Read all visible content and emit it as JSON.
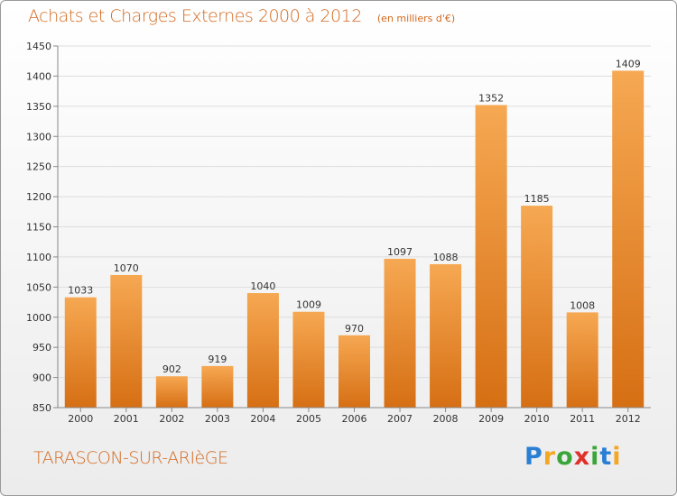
{
  "title": "Achats et Charges Externes 2000 à 2012",
  "subtitle": "(en milliers d'€)",
  "city": "TARASCON-SUR-ARIèGE",
  "brand": {
    "letters": [
      "P",
      "r",
      "o",
      "x",
      "i",
      "t",
      "i"
    ],
    "colors": [
      "#2a7fd4",
      "#f5a623",
      "#3aa63a",
      "#e0302a",
      "#3aa63a",
      "#2a7fd4",
      "#f5a623"
    ]
  },
  "colors": {
    "bar_top": "#f6a852",
    "bar_bottom": "#d66f14",
    "grid": "#dddddd",
    "title": "#d2691e"
  },
  "chart_data": {
    "type": "bar",
    "categories": [
      "2000",
      "2001",
      "2002",
      "2003",
      "2004",
      "2005",
      "2006",
      "2007",
      "2008",
      "2009",
      "2010",
      "2011",
      "2012"
    ],
    "values": [
      1033,
      1070,
      902,
      919,
      1040,
      1009,
      970,
      1097,
      1088,
      1352,
      1185,
      1008,
      1409
    ],
    "ylim": [
      850,
      1450
    ],
    "yticks": [
      850,
      900,
      950,
      1000,
      1050,
      1100,
      1150,
      1200,
      1250,
      1300,
      1350,
      1400,
      1450
    ],
    "grid": true,
    "data_labels": true
  }
}
